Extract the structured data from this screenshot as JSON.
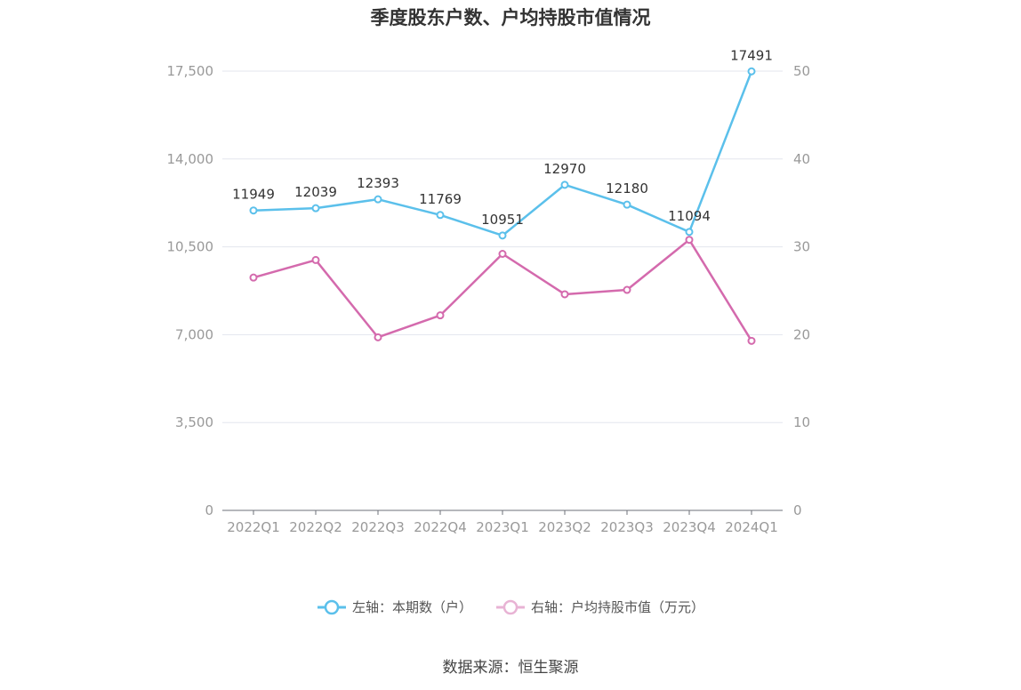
{
  "chart_data": {
    "type": "line",
    "title": "季度股东户数、户均持股市值情况",
    "categories": [
      "2022Q1",
      "2022Q2",
      "2022Q3",
      "2022Q4",
      "2023Q1",
      "2023Q2",
      "2023Q3",
      "2023Q4",
      "2024Q1"
    ],
    "series": [
      {
        "name": "左轴：本期数（户）",
        "axis": "left",
        "color": "#5bc0eb",
        "values": [
          11949,
          12039,
          12393,
          11769,
          10951,
          12970,
          12180,
          11094,
          17491
        ],
        "labels": [
          "11949",
          "12039",
          "12393",
          "11769",
          "10951",
          "12970",
          "12180",
          "11094",
          "17491"
        ]
      },
      {
        "name": "右轴：户均持股市值（万元）",
        "axis": "right",
        "color": "#d46aad",
        "values": [
          26.5,
          28.5,
          19.7,
          22.2,
          29.2,
          24.6,
          25.1,
          30.8,
          19.3
        ]
      }
    ],
    "left_axis": {
      "min": 0,
      "max": 17500,
      "ticks": [
        "0",
        "3,500",
        "7,000",
        "10,500",
        "14,000",
        "17,500"
      ],
      "tick_values": [
        0,
        3500,
        7000,
        10500,
        14000,
        17500
      ]
    },
    "right_axis": {
      "min": 0,
      "max": 50,
      "ticks": [
        "0",
        "10",
        "20",
        "30",
        "40",
        "50"
      ],
      "tick_values": [
        0,
        10,
        20,
        30,
        40,
        50
      ]
    },
    "grid": true,
    "legend_position": "bottom"
  },
  "source": "数据来源：恒生聚源"
}
